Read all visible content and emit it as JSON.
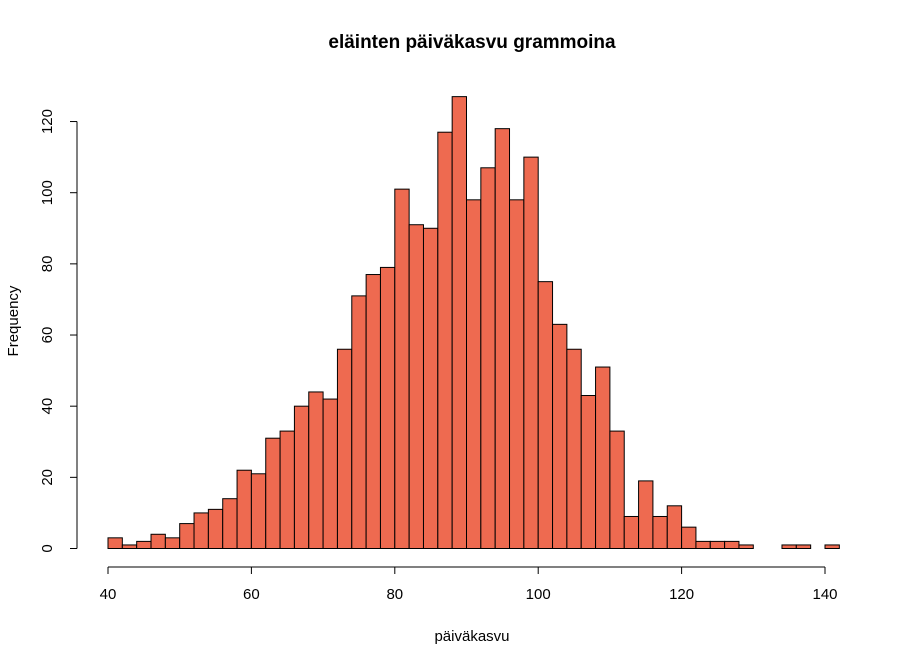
{
  "chart_data": {
    "type": "bar",
    "title": "eläinten päiväkasvu grammoina",
    "xlabel": "päiväkasvu",
    "ylabel": "Frequency",
    "bin_width": 2,
    "x_start": 40,
    "xlim": [
      40,
      142
    ],
    "ylim": [
      0,
      127
    ],
    "x_ticks": [
      40,
      60,
      80,
      100,
      120,
      140
    ],
    "y_ticks": [
      0,
      20,
      40,
      60,
      80,
      100,
      120
    ],
    "bar_color": "#EE6A50",
    "values": [
      3,
      1,
      2,
      4,
      3,
      7,
      10,
      11,
      14,
      22,
      21,
      31,
      33,
      40,
      44,
      42,
      56,
      71,
      77,
      79,
      101,
      91,
      90,
      117,
      127,
      98,
      107,
      118,
      98,
      110,
      75,
      63,
      56,
      43,
      51,
      33,
      9,
      19,
      9,
      12,
      6,
      2,
      2,
      2,
      1,
      0,
      0,
      1,
      1,
      0,
      1
    ]
  }
}
